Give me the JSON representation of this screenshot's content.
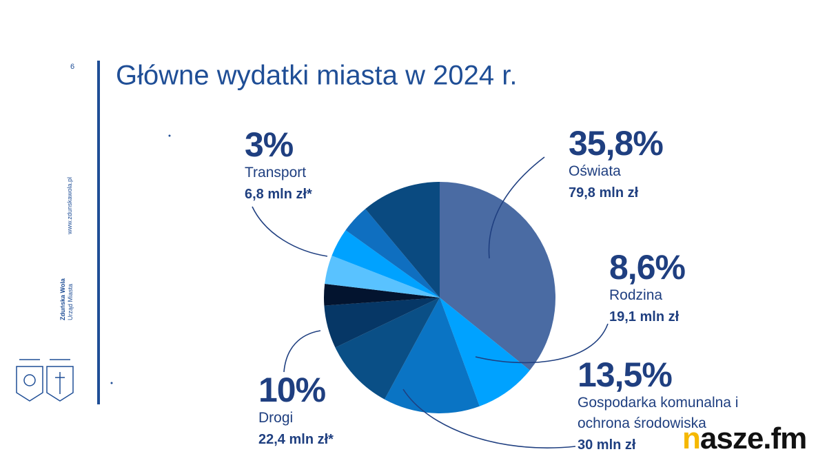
{
  "page": {
    "number": "6",
    "website": "www.zdunskawola.pl",
    "org_name": "Zduńska Wola",
    "org_unit": "Urząd Miasta",
    "watermark": "nasze.fm"
  },
  "chart_data": {
    "type": "pie",
    "title": "Główne wydatki miasta w 2024 r.",
    "categories": [
      "Oświata",
      "Rodzina",
      "Gospodarka komunalna i ochrona środowiska",
      "Drogi",
      null,
      "Transport",
      null,
      null,
      null,
      null
    ],
    "values": [
      35.8,
      8.6,
      13.5,
      10,
      6,
      3,
      4,
      4,
      4,
      11.1
    ],
    "value_labels": [
      "35,8%",
      "8,6%",
      "13,5%",
      "10%",
      null,
      "3%",
      null,
      null,
      null,
      null
    ],
    "amounts": [
      "79,8 mln zł",
      "19,1 mln zł",
      "30 mln zł",
      "22,4 mln zł*",
      null,
      "6,8 mln zł*",
      null,
      null,
      null,
      null
    ],
    "colors": [
      "#4a6ba3",
      "#00a2ff",
      "#0a74c4",
      "#0a4f86",
      "#063766",
      "#03142f",
      "#59c2ff",
      "#00a2ff",
      "#0f6fc0",
      "#0a4a80"
    ]
  }
}
